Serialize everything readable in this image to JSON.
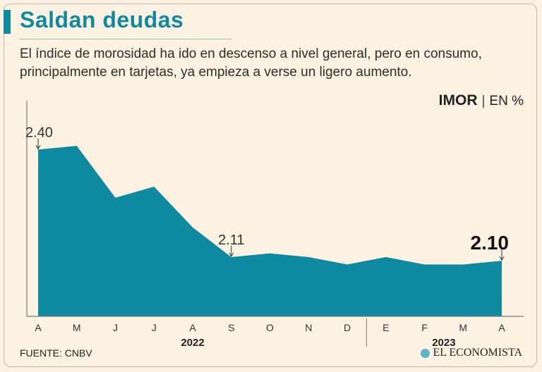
{
  "header": {
    "title": "Saldan deudas",
    "subtitle": "El índice de morosidad ha ido en descenso a nivel general, pero en consumo, principalmente en tarjetas, ya empieza a verse un ligero aumento."
  },
  "unit": {
    "name": "IMOR",
    "separator": "|",
    "suffix": "EN %"
  },
  "footer": {
    "source": "FUENTE: CNBV",
    "brand": "EL ECONOMISTA"
  },
  "colors": {
    "background": "#fdf1e1",
    "area": "#0f8aa0",
    "accent": "#0f8aa0",
    "text": "#222222",
    "axis": "#7a7a7a"
  },
  "chart_data": {
    "type": "area",
    "title": "Saldan deudas",
    "ylabel": "IMOR | EN %",
    "xlabel": "",
    "categories": [
      "A",
      "M",
      "J",
      "J",
      "A",
      "S",
      "O",
      "N",
      "D",
      "E",
      "F",
      "M",
      "A"
    ],
    "values": [
      2.4,
      2.41,
      2.27,
      2.3,
      2.19,
      2.11,
      2.12,
      2.11,
      2.09,
      2.11,
      2.09,
      2.09,
      2.1
    ],
    "year_groups": [
      {
        "label": "2022",
        "start": 0,
        "end": 8
      },
      {
        "label": "2023",
        "start": 9,
        "end": 12
      }
    ],
    "annotations": [
      {
        "index": 0,
        "text": "2.40",
        "style": "normal"
      },
      {
        "index": 5,
        "text": "2.11",
        "style": "normal"
      },
      {
        "index": 12,
        "text": "2.10",
        "style": "bold"
      }
    ],
    "ylim": [
      1.95,
      2.45
    ],
    "grid": false
  }
}
